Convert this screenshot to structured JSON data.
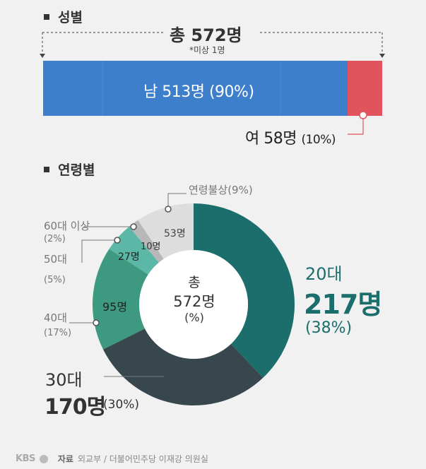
{
  "gender": {
    "heading": "성별",
    "total_label": "총 572명",
    "note": "*미상 1명",
    "male_label": "남 513명 (90%)",
    "female_label_main": "여 58명",
    "female_label_pct": "(10%)",
    "colors": {
      "male": "#3d7fca",
      "female": "#e1545e"
    }
  },
  "age": {
    "heading": "연령별",
    "center_line1": "총",
    "center_line2": "572명",
    "center_line3": "(%)",
    "labels": {
      "s20_name": "20대",
      "s20_count": "217명",
      "s20_pct": "(38%)",
      "s30_name": "30대",
      "s30_count": "170명",
      "s30_pct": "(30%)",
      "s40_name": "40대",
      "s40_pct": "(17%)",
      "s40_inner": "95명",
      "s50_name": "50대",
      "s50_pct": "(5%)",
      "s50_inner": "27명",
      "s60_name": "60대 이상",
      "s60_pct": "(2%)",
      "s60_inner": "10명",
      "unk_name": "연령불상(9%)",
      "unk_inner": "53명"
    }
  },
  "chart_data": [
    {
      "type": "bar",
      "title": "성별",
      "orientation": "horizontal-stacked",
      "categories": [
        "남",
        "여"
      ],
      "values": [
        513,
        58
      ],
      "percent": [
        90,
        10
      ],
      "total": 572,
      "note": "*미상 1명"
    },
    {
      "type": "pie",
      "title": "연령별",
      "donut": true,
      "categories": [
        "20대",
        "30대",
        "40대",
        "50대",
        "60대 이상",
        "연령불상"
      ],
      "values": [
        217,
        170,
        95,
        27,
        10,
        53
      ],
      "percent": [
        38,
        30,
        17,
        5,
        2,
        9
      ],
      "colors": [
        "#1b6e6b",
        "#37474d",
        "#3d9a80",
        "#5cb8a6",
        "#b8b8b8",
        "#dddddd"
      ],
      "total": 572
    }
  ],
  "footer": {
    "logo": "KBS",
    "source_label": "자료",
    "source_text": "외교부 / 더불어민주당 이재강 의원실"
  }
}
